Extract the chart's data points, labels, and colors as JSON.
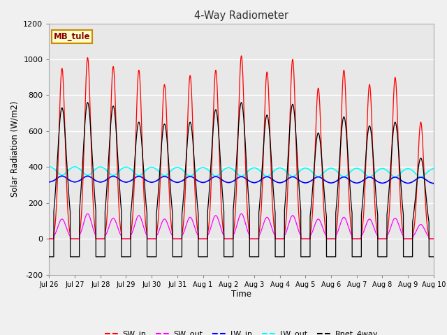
{
  "title": "4-Way Radiometer",
  "xlabel": "Time",
  "ylabel": "Solar Radiation (W/m2)",
  "ylim": [
    -200,
    1200
  ],
  "yticks": [
    -200,
    0,
    200,
    400,
    600,
    800,
    1000,
    1200
  ],
  "fig_bg_color": "#f0f0f0",
  "plot_bg_color": "#e8e8e8",
  "label_box_text": "MB_tule",
  "label_box_bg": "#ffffcc",
  "label_box_edge": "#cc8800",
  "n_days": 15,
  "day_labels": [
    "Jul 26",
    "Jul 27",
    "Jul 28",
    "Jul 29",
    "Jul 30",
    "Jul 31",
    "Aug 1",
    "Aug 2",
    "Aug 3",
    "Aug 4",
    "Aug 5",
    "Aug 6",
    "Aug 7",
    "Aug 8",
    "Aug 9",
    "Aug 10"
  ],
  "sw_in_peaks": [
    950,
    1010,
    960,
    940,
    860,
    910,
    940,
    1020,
    930,
    1000,
    840,
    940,
    860,
    900,
    650
  ],
  "sw_out_peaks": [
    110,
    140,
    115,
    130,
    110,
    120,
    130,
    140,
    120,
    130,
    110,
    120,
    110,
    115,
    80
  ],
  "lw_in_base": 315,
  "lw_in_day_rise": 35,
  "lw_out_base": 405,
  "lw_out_day_dip": 50,
  "rnet_peaks": [
    730,
    760,
    740,
    650,
    640,
    650,
    720,
    760,
    690,
    750,
    590,
    680,
    630,
    650,
    450
  ],
  "night_rnet": -100,
  "samples_per_day": 288
}
